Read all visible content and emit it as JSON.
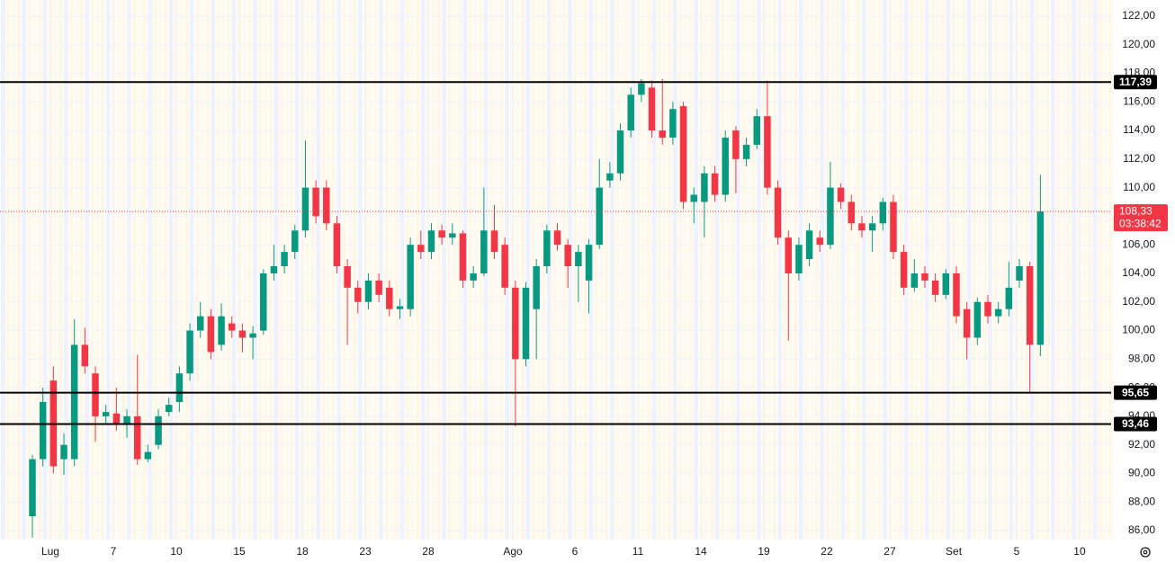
{
  "chart_data": {
    "type": "candlestick",
    "x": [
      0,
      1,
      2,
      3,
      4,
      5,
      6,
      7,
      8,
      9,
      10,
      11,
      12,
      13,
      14,
      15,
      16,
      17,
      18,
      19,
      20,
      21,
      22,
      23,
      24,
      25,
      26,
      27,
      28,
      29,
      30,
      31,
      32,
      33,
      34,
      35,
      36,
      37,
      38,
      39,
      40,
      41,
      42,
      43,
      44,
      45,
      46,
      47,
      48,
      49,
      50,
      51,
      52,
      53,
      54,
      55,
      56,
      57,
      58,
      59,
      60,
      61,
      62,
      63,
      64,
      65,
      66,
      67,
      68,
      69,
      70,
      71,
      72,
      73,
      74,
      75,
      76,
      77,
      78,
      79,
      80,
      81,
      82,
      83,
      84,
      85,
      86,
      87,
      88,
      89,
      90,
      91,
      92,
      93,
      94,
      95,
      96
    ],
    "open": [
      87,
      91,
      96.5,
      91,
      91,
      99,
      97,
      94,
      94.2,
      93.5,
      94,
      91,
      92,
      94.3,
      95,
      97,
      100,
      101,
      99,
      100.5,
      100,
      99.5,
      100,
      104,
      104.5,
      105.5,
      107,
      110,
      110,
      107.5,
      104.5,
      103,
      102,
      103.5,
      103,
      101.5,
      101.5,
      106,
      105.5,
      107,
      106.5,
      106.8,
      103.5,
      104,
      107,
      106,
      103,
      98,
      101.5,
      104.5,
      107,
      106,
      104.5,
      103.5,
      106,
      110.5,
      111,
      114,
      116.5,
      117,
      114,
      113.5,
      115.7,
      109,
      109,
      111,
      109.5,
      114,
      112,
      113,
      115,
      110,
      106.5,
      104,
      105,
      106.5,
      106,
      110,
      109,
      107.5,
      107,
      107.5,
      109,
      105.5,
      103,
      104,
      103.5,
      102.5,
      104,
      101.5,
      99.5,
      102,
      101,
      101.5,
      103.5,
      104.5,
      99
    ],
    "high": [
      91.3,
      96,
      97.5,
      92.8,
      100.8,
      100.2,
      97.5,
      94.8,
      96,
      94.5,
      98.3,
      92,
      94.5,
      95.3,
      97.5,
      100.5,
      102,
      101.5,
      101.9,
      101,
      100.5,
      100.3,
      104.3,
      106,
      106,
      107.4,
      113.3,
      110.5,
      110.5,
      108,
      105,
      103.5,
      104,
      104,
      103.5,
      102.2,
      106.5,
      107,
      107.5,
      107.4,
      107.5,
      107,
      104.5,
      110,
      108.8,
      106.5,
      103.5,
      103.4,
      105,
      107.4,
      107.5,
      106.4,
      106,
      106.4,
      112,
      111.8,
      114.5,
      117,
      117.6,
      117.5,
      117.6,
      116,
      116,
      110,
      111.5,
      111.5,
      114,
      114.3,
      113.5,
      115.5,
      117.5,
      110.5,
      107,
      106.5,
      107.5,
      107,
      111.8,
      110.3,
      109.5,
      108,
      108,
      109.3,
      109.5,
      106,
      105,
      104.5,
      104,
      104.3,
      104.5,
      102,
      102.3,
      102.5,
      102,
      104.8,
      105,
      104.8,
      110.9
    ],
    "low": [
      85.5,
      90.5,
      90,
      89.9,
      90.5,
      97,
      92.2,
      93.5,
      93,
      92.5,
      90.6,
      90.8,
      91.7,
      94,
      94.3,
      96.5,
      99.5,
      98,
      98.6,
      99.5,
      98.5,
      98,
      99.7,
      103.5,
      104,
      105,
      106.5,
      107.5,
      107,
      104,
      99,
      101.2,
      101.5,
      102,
      101,
      100.8,
      101,
      105,
      105,
      106,
      106,
      103,
      103,
      103.8,
      105,
      102.5,
      93.3,
      97.5,
      98,
      104,
      105.6,
      103,
      102,
      101.2,
      105.7,
      110,
      110.5,
      113.5,
      116,
      113.5,
      113,
      113,
      108.5,
      107.5,
      106.5,
      109,
      109,
      109.6,
      111.5,
      112.7,
      109.5,
      106,
      99.3,
      103.5,
      104.5,
      105.5,
      105.7,
      108.5,
      107,
      106.5,
      105.5,
      107,
      105,
      102.5,
      102.7,
      103,
      102,
      102.2,
      100.5,
      98,
      99,
      100.5,
      100.5,
      101,
      103,
      95.6,
      98.2
    ],
    "close": [
      91,
      95,
      90.5,
      92,
      99,
      97.5,
      94,
      94.3,
      93.5,
      94,
      91,
      91.5,
      94,
      94.8,
      97,
      100,
      101,
      98.5,
      101,
      100,
      99.5,
      99.8,
      104,
      104.5,
      105.5,
      107,
      110,
      108,
      107.5,
      104.5,
      103,
      102,
      103.5,
      102.5,
      101.5,
      101.7,
      106,
      105.5,
      107,
      106.5,
      106.8,
      103.5,
      104,
      107,
      105.5,
      103,
      98,
      103,
      104.5,
      107,
      106,
      104.5,
      105.5,
      106,
      110,
      111,
      114,
      116.5,
      117.3,
      114,
      113.5,
      115.5,
      109,
      109.5,
      111,
      109.5,
      113.5,
      112,
      113,
      115,
      110,
      106.5,
      104,
      106,
      107,
      106,
      110,
      109,
      107.5,
      107,
      107.5,
      109,
      105.5,
      103,
      104,
      103.5,
      102.5,
      104,
      101,
      99.5,
      102,
      101,
      101.5,
      103,
      104.5,
      99,
      108.33
    ],
    "up_color": "#089981",
    "down_color": "#f23645",
    "xlim": [
      -3.085,
      102.74
    ],
    "xticks": [
      {
        "value": 1.71,
        "label": "Lug"
      },
      {
        "value": 7.71,
        "label": "7"
      },
      {
        "value": 13.71,
        "label": "10"
      },
      {
        "value": 19.71,
        "label": "15"
      },
      {
        "value": 25.71,
        "label": "18"
      },
      {
        "value": 31.71,
        "label": "23"
      },
      {
        "value": 37.7,
        "label": "28"
      },
      {
        "value": 45.76,
        "label": "Ago"
      },
      {
        "value": 51.67,
        "label": "6"
      },
      {
        "value": 57.67,
        "label": "11"
      },
      {
        "value": 63.67,
        "label": "14"
      },
      {
        "value": 69.67,
        "label": "19"
      },
      {
        "value": 75.66,
        "label": "22"
      },
      {
        "value": 81.66,
        "label": "27"
      },
      {
        "value": 87.75,
        "label": "Set"
      },
      {
        "value": 93.74,
        "label": "5"
      },
      {
        "value": 99.74,
        "label": "10"
      }
    ],
    "ylim": [
      85.37,
      123.13
    ],
    "yticks": [
      {
        "value": 86,
        "label": "86,00"
      },
      {
        "value": 88,
        "label": "88,00"
      },
      {
        "value": 90,
        "label": "90,00"
      },
      {
        "value": 92,
        "label": "92,00"
      },
      {
        "value": 94,
        "label": "94,00"
      },
      {
        "value": 96,
        "label": "96,00"
      },
      {
        "value": 98,
        "label": "98,00"
      },
      {
        "value": 100,
        "label": "100,00"
      },
      {
        "value": 102,
        "label": "102,00"
      },
      {
        "value": 104,
        "label": "104,00"
      },
      {
        "value": 106,
        "label": "106,00"
      },
      {
        "value": 108,
        "label": "108,00"
      },
      {
        "value": 110,
        "label": "110,00"
      },
      {
        "value": 112,
        "label": "112,00"
      },
      {
        "value": 114,
        "label": "114,00"
      },
      {
        "value": 116,
        "label": "116,00"
      },
      {
        "value": 118,
        "label": "118,00"
      },
      {
        "value": 120,
        "label": "120,00"
      },
      {
        "value": 122,
        "label": "122,00"
      }
    ],
    "hlines": [
      {
        "value": 117.39,
        "label": "117,39"
      },
      {
        "value": 95.65,
        "label": "95,65"
      },
      {
        "value": 93.46,
        "label": "93,46"
      }
    ],
    "last_price": {
      "value": 108.33,
      "label": "108,33",
      "countdown": "03:38:42",
      "color": "#f23645"
    }
  }
}
